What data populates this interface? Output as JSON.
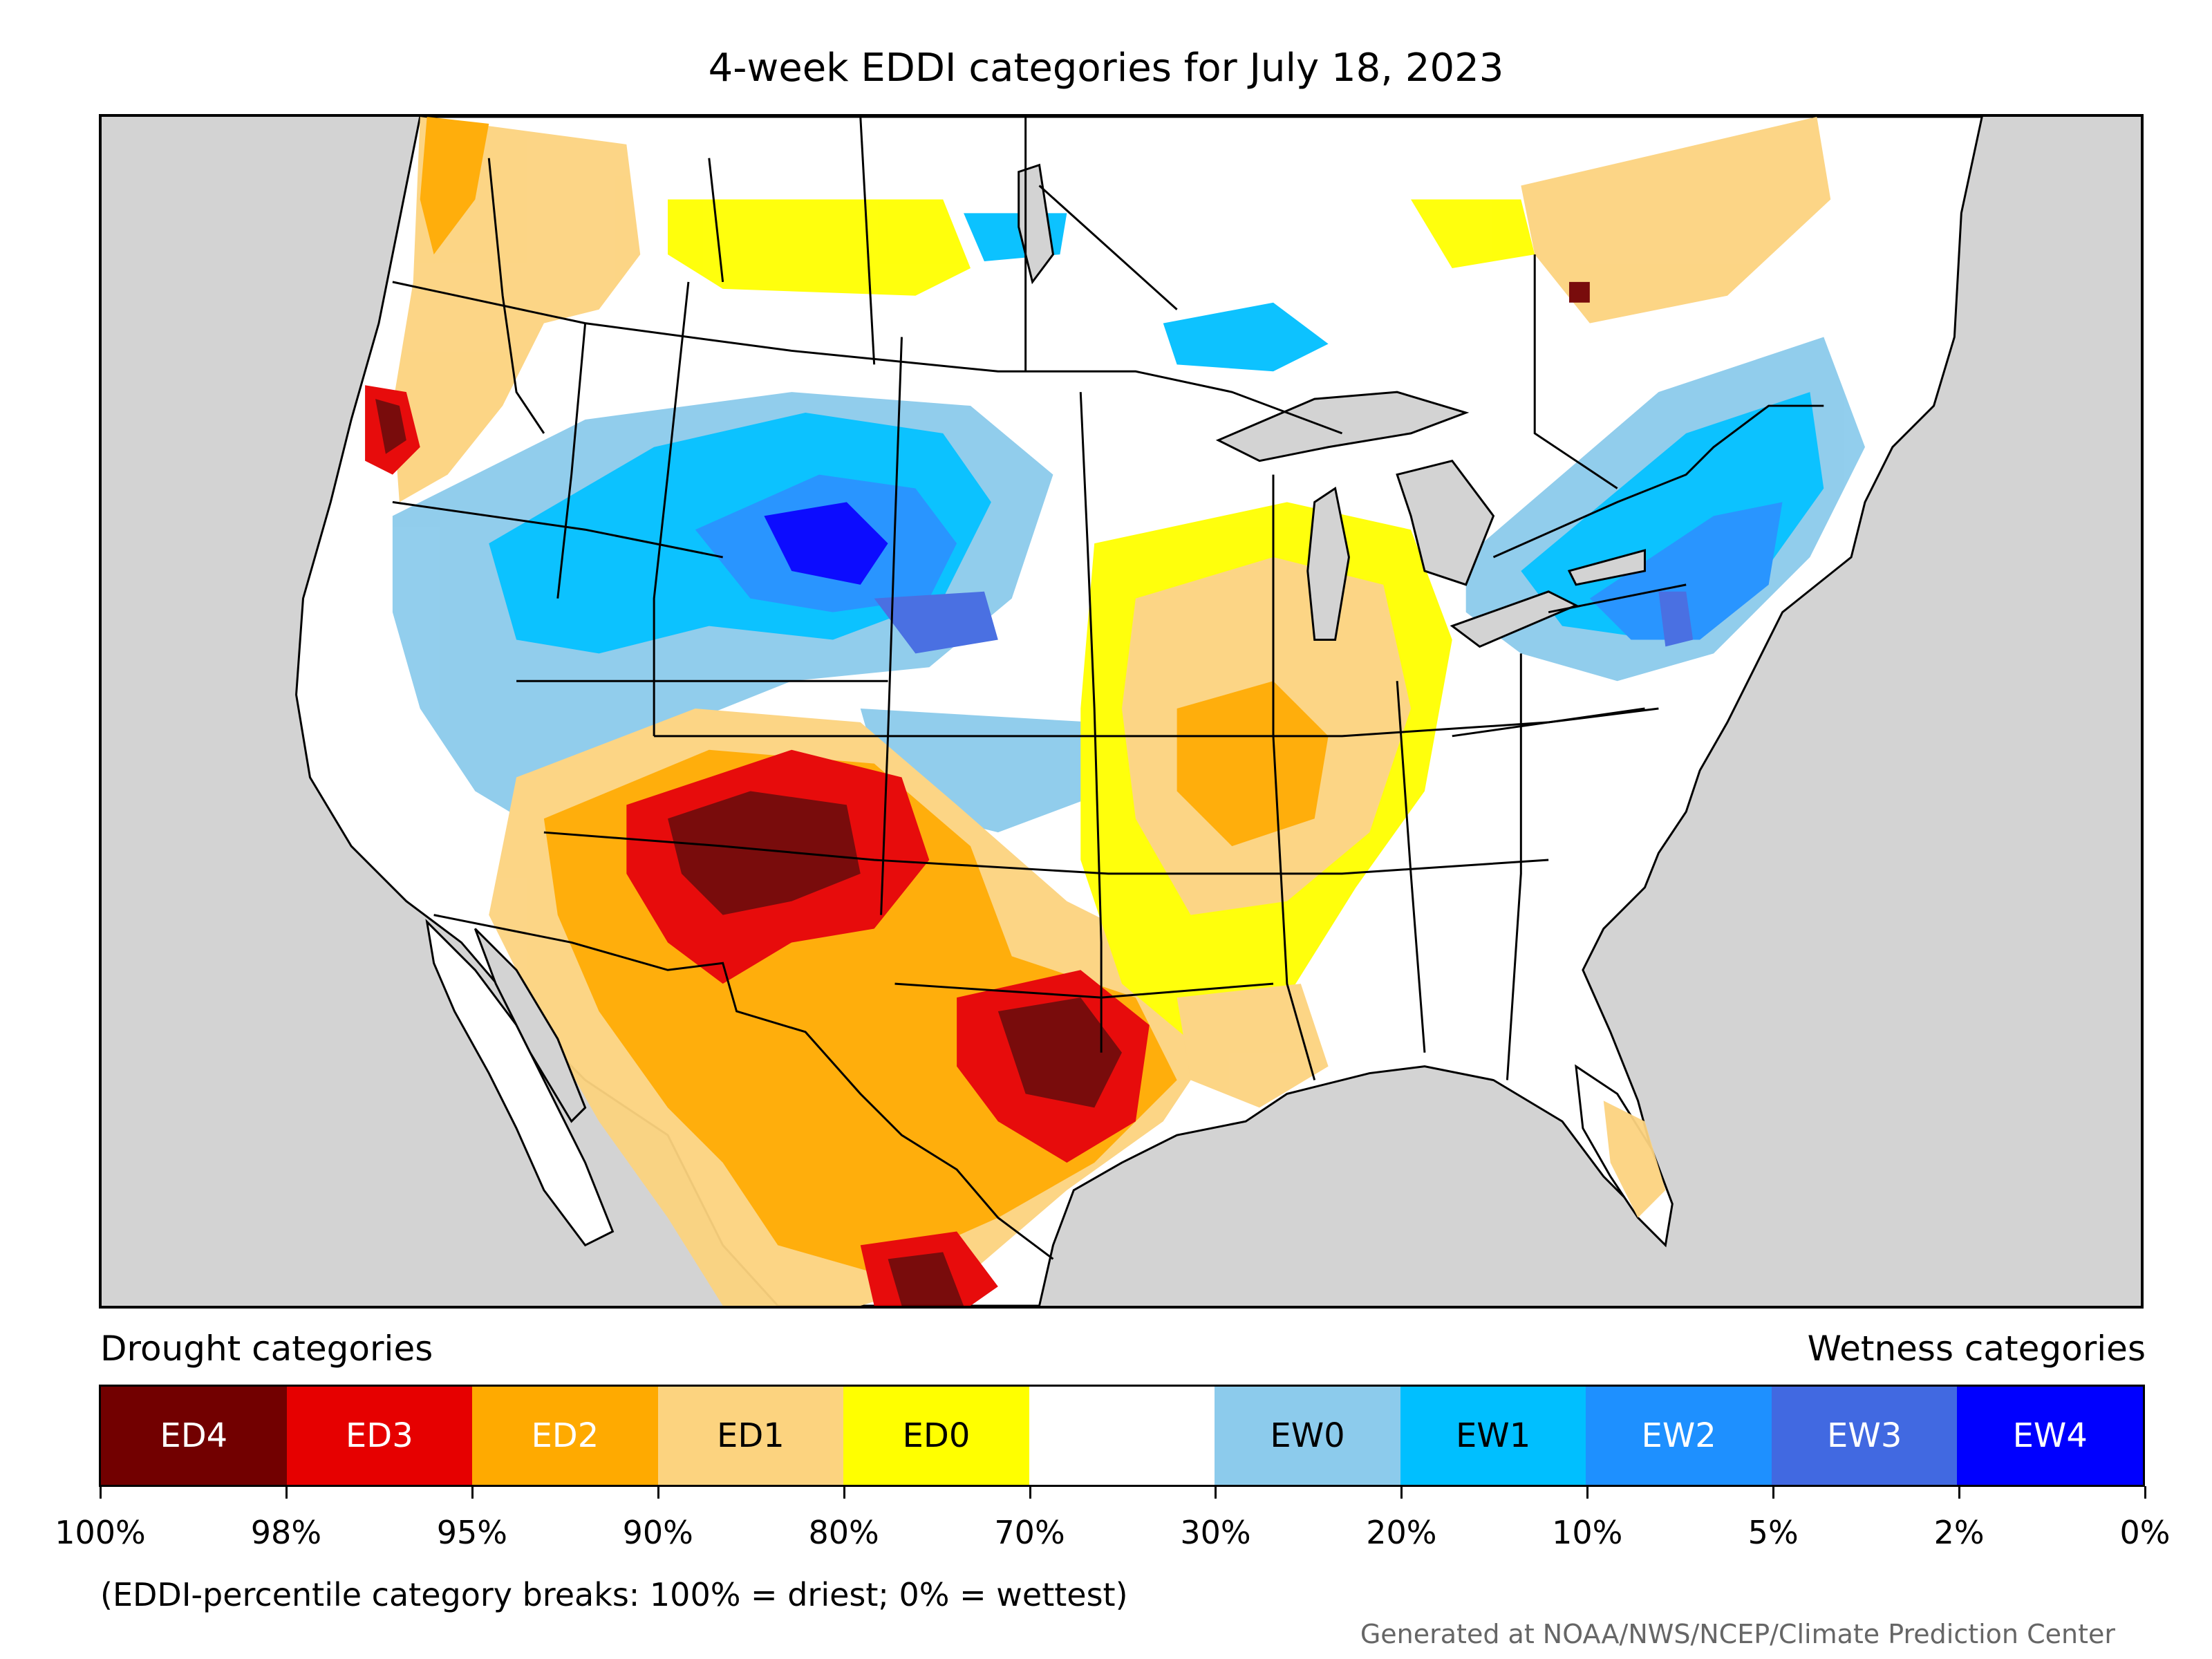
{
  "title": "4-week EDDI categories for July 18, 2023",
  "map": {
    "background_color": "#d3d3d3",
    "land_color": "#ffffff",
    "boundary_color": "#000000"
  },
  "legend": {
    "drought_heading": "Drought categories",
    "wetness_heading": "Wetness categories",
    "categories": [
      {
        "label": "ED4",
        "color": "#720000",
        "text_color": "#ffffff"
      },
      {
        "label": "ED3",
        "color": "#e60000",
        "text_color": "#ffffff"
      },
      {
        "label": "ED2",
        "color": "#ffaa00",
        "text_color": "#ffffff"
      },
      {
        "label": "ED1",
        "color": "#fcd37f",
        "text_color": "#000000"
      },
      {
        "label": "ED0",
        "color": "#ffff00",
        "text_color": "#000000"
      },
      {
        "label": "",
        "color": "#ffffff",
        "text_color": "#000000"
      },
      {
        "label": "EW0",
        "color": "#8ccbec",
        "text_color": "#000000"
      },
      {
        "label": "EW1",
        "color": "#00bfff",
        "text_color": "#000000"
      },
      {
        "label": "EW2",
        "color": "#1e90ff",
        "text_color": "#ffffff"
      },
      {
        "label": "EW3",
        "color": "#4169e1",
        "text_color": "#ffffff"
      },
      {
        "label": "EW4",
        "color": "#0000ff",
        "text_color": "#ffffff"
      }
    ],
    "tick_labels": [
      "100%",
      "98%",
      "95%",
      "90%",
      "80%",
      "70%",
      "30%",
      "20%",
      "10%",
      "5%",
      "2%",
      "0%"
    ],
    "note": "(EDDI-percentile category breaks: 100% = driest; 0% = wettest)"
  },
  "credit": "Generated at NOAA/NWS/NCEP/Climate Prediction Center"
}
